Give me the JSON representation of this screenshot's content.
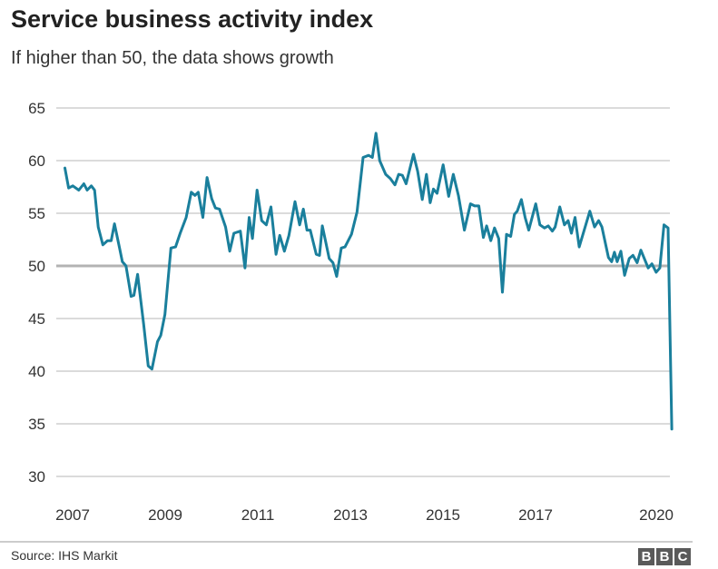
{
  "chart_data": {
    "type": "line",
    "title": "Service business activity index",
    "subtitle": "If higher than 50, the data shows growth",
    "xlabel": "",
    "ylabel": "",
    "ylim": [
      30,
      65
    ],
    "xlim": [
      2007,
      2020.2
    ],
    "yticks": [
      30,
      35,
      40,
      45,
      50,
      55,
      60,
      65
    ],
    "xticks": [
      2007,
      2009,
      2011,
      2013,
      2015,
      2017,
      2020
    ],
    "grid": true,
    "highlight_line": 50,
    "line_color": "#1a7f9c",
    "series": [
      {
        "name": "Service business activity index",
        "points": [
          [
            2007.01,
            59.3
          ],
          [
            2007.09,
            57.4
          ],
          [
            2007.18,
            57.6
          ],
          [
            2007.31,
            57.2
          ],
          [
            2007.42,
            57.8
          ],
          [
            2007.49,
            57.2
          ],
          [
            2007.58,
            57.6
          ],
          [
            2007.65,
            57.2
          ],
          [
            2007.73,
            53.7
          ],
          [
            2007.83,
            52.0
          ],
          [
            2007.93,
            52.4
          ],
          [
            2008.01,
            52.4
          ],
          [
            2008.08,
            54.0
          ],
          [
            2008.19,
            51.7
          ],
          [
            2008.25,
            50.4
          ],
          [
            2008.33,
            50.0
          ],
          [
            2008.44,
            47.1
          ],
          [
            2008.5,
            47.2
          ],
          [
            2008.58,
            49.2
          ],
          [
            2008.71,
            44.5
          ],
          [
            2008.81,
            40.5
          ],
          [
            2008.89,
            40.2
          ],
          [
            2009.01,
            42.8
          ],
          [
            2009.08,
            43.4
          ],
          [
            2009.17,
            45.4
          ],
          [
            2009.3,
            51.7
          ],
          [
            2009.4,
            51.8
          ],
          [
            2009.5,
            53.1
          ],
          [
            2009.63,
            54.6
          ],
          [
            2009.74,
            57.0
          ],
          [
            2009.82,
            56.7
          ],
          [
            2009.89,
            57.0
          ],
          [
            2009.99,
            54.6
          ],
          [
            2010.08,
            58.4
          ],
          [
            2010.18,
            56.4
          ],
          [
            2010.26,
            55.5
          ],
          [
            2010.35,
            55.4
          ],
          [
            2010.48,
            53.7
          ],
          [
            2010.57,
            51.4
          ],
          [
            2010.66,
            53.1
          ],
          [
            2010.8,
            53.3
          ],
          [
            2010.9,
            49.8
          ],
          [
            2010.99,
            54.6
          ],
          [
            2011.06,
            52.6
          ],
          [
            2011.16,
            57.2
          ],
          [
            2011.26,
            54.3
          ],
          [
            2011.36,
            53.9
          ],
          [
            2011.46,
            55.6
          ],
          [
            2011.57,
            51.1
          ],
          [
            2011.65,
            52.9
          ],
          [
            2011.75,
            51.4
          ],
          [
            2011.85,
            52.9
          ],
          [
            2011.98,
            56.1
          ],
          [
            2012.08,
            53.9
          ],
          [
            2012.16,
            55.4
          ],
          [
            2012.24,
            53.4
          ],
          [
            2012.31,
            53.4
          ],
          [
            2012.44,
            51.1
          ],
          [
            2012.51,
            51.0
          ],
          [
            2012.57,
            53.8
          ],
          [
            2012.72,
            50.7
          ],
          [
            2012.8,
            50.3
          ],
          [
            2012.88,
            49.0
          ],
          [
            2012.98,
            51.7
          ],
          [
            2013.06,
            51.8
          ],
          [
            2013.2,
            53.0
          ],
          [
            2013.32,
            55.1
          ],
          [
            2013.45,
            60.3
          ],
          [
            2013.57,
            60.5
          ],
          [
            2013.65,
            60.3
          ],
          [
            2013.73,
            62.6
          ],
          [
            2013.81,
            60.0
          ],
          [
            2013.94,
            58.7
          ],
          [
            2014.04,
            58.3
          ],
          [
            2014.14,
            57.7
          ],
          [
            2014.22,
            58.7
          ],
          [
            2014.3,
            58.6
          ],
          [
            2014.38,
            57.8
          ],
          [
            2014.54,
            60.6
          ],
          [
            2014.63,
            59.0
          ],
          [
            2014.73,
            56.3
          ],
          [
            2014.82,
            58.7
          ],
          [
            2014.9,
            56.0
          ],
          [
            2014.97,
            57.3
          ],
          [
            2015.05,
            56.9
          ],
          [
            2015.18,
            59.6
          ],
          [
            2015.3,
            56.6
          ],
          [
            2015.4,
            58.7
          ],
          [
            2015.51,
            56.7
          ],
          [
            2015.64,
            53.4
          ],
          [
            2015.77,
            55.9
          ],
          [
            2015.86,
            55.7
          ],
          [
            2015.95,
            55.7
          ],
          [
            2016.05,
            52.7
          ],
          [
            2016.12,
            53.8
          ],
          [
            2016.21,
            52.4
          ],
          [
            2016.29,
            53.6
          ],
          [
            2016.38,
            52.6
          ],
          [
            2016.46,
            47.5
          ],
          [
            2016.55,
            53.0
          ],
          [
            2016.64,
            52.8
          ],
          [
            2016.72,
            54.9
          ],
          [
            2016.78,
            55.2
          ],
          [
            2016.87,
            56.3
          ],
          [
            2016.95,
            54.6
          ],
          [
            2017.03,
            53.4
          ],
          [
            2017.18,
            55.9
          ],
          [
            2017.27,
            53.9
          ],
          [
            2017.37,
            53.6
          ],
          [
            2017.45,
            53.8
          ],
          [
            2017.54,
            53.3
          ],
          [
            2017.6,
            53.7
          ],
          [
            2017.7,
            55.6
          ],
          [
            2017.8,
            53.9
          ],
          [
            2017.88,
            54.3
          ],
          [
            2017.95,
            53.1
          ],
          [
            2018.03,
            54.6
          ],
          [
            2018.12,
            51.8
          ],
          [
            2018.35,
            55.2
          ],
          [
            2018.45,
            53.7
          ],
          [
            2018.54,
            54.3
          ],
          [
            2018.61,
            53.7
          ],
          [
            2018.75,
            50.8
          ],
          [
            2018.82,
            50.4
          ],
          [
            2018.88,
            51.3
          ],
          [
            2018.94,
            50.4
          ],
          [
            2019.02,
            51.4
          ],
          [
            2019.1,
            49.1
          ],
          [
            2019.2,
            50.7
          ],
          [
            2019.28,
            51.0
          ],
          [
            2019.37,
            50.3
          ],
          [
            2019.45,
            51.5
          ],
          [
            2019.61,
            49.8
          ],
          [
            2019.69,
            50.2
          ],
          [
            2019.78,
            49.4
          ],
          [
            2019.86,
            49.8
          ],
          [
            2019.95,
            53.9
          ],
          [
            2020.04,
            53.6
          ],
          [
            2020.12,
            34.5
          ]
        ]
      }
    ]
  },
  "footer": {
    "source": "Source: IHS Markit",
    "logo_letters": [
      "B",
      "B",
      "C"
    ]
  }
}
